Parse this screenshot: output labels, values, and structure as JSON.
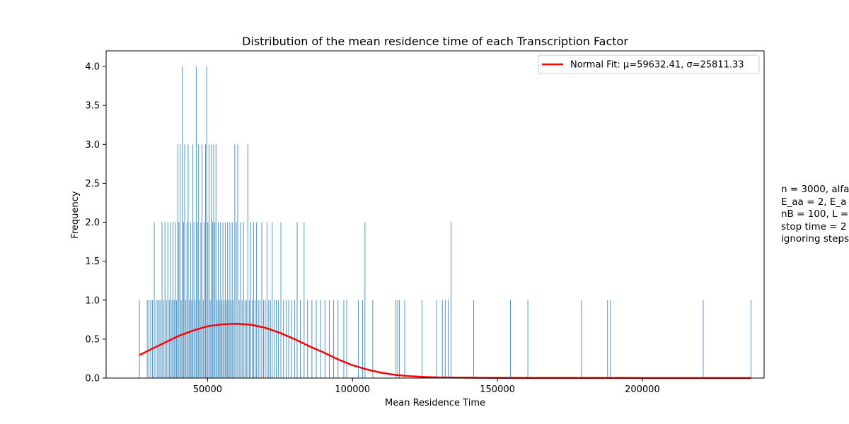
{
  "chart_data": {
    "type": "bar",
    "title": "Distribution of the mean residence time of each Transcription Factor",
    "xlabel": "Mean Residence Time",
    "ylabel": "Frequency",
    "xlim": [
      15000,
      242000
    ],
    "ylim": [
      0,
      4.2
    ],
    "x_ticks": [
      50000,
      100000,
      150000,
      200000
    ],
    "y_ticks": [
      0.0,
      0.5,
      1.0,
      1.5,
      2.0,
      2.5,
      3.0,
      3.5,
      4.0
    ],
    "grid": false,
    "legend_position": "top-right",
    "bar_color": "#1f77b4",
    "fit_color": "#ff0000",
    "series": [
      {
        "name": "",
        "type": "histogram",
        "bin_width": 240,
        "bars": [
          {
            "x": 26500,
            "y": 1
          },
          {
            "x": 29200,
            "y": 1
          },
          {
            "x": 29800,
            "y": 1
          },
          {
            "x": 30400,
            "y": 1
          },
          {
            "x": 31000,
            "y": 1
          },
          {
            "x": 31600,
            "y": 2
          },
          {
            "x": 32200,
            "y": 1
          },
          {
            "x": 32800,
            "y": 1
          },
          {
            "x": 33300,
            "y": 1
          },
          {
            "x": 33800,
            "y": 1
          },
          {
            "x": 34300,
            "y": 2
          },
          {
            "x": 34800,
            "y": 1
          },
          {
            "x": 35300,
            "y": 2
          },
          {
            "x": 35800,
            "y": 1
          },
          {
            "x": 36300,
            "y": 2
          },
          {
            "x": 36800,
            "y": 1
          },
          {
            "x": 37200,
            "y": 2
          },
          {
            "x": 37700,
            "y": 1
          },
          {
            "x": 38100,
            "y": 2
          },
          {
            "x": 38500,
            "y": 1
          },
          {
            "x": 38900,
            "y": 2
          },
          {
            "x": 39300,
            "y": 1
          },
          {
            "x": 39700,
            "y": 3
          },
          {
            "x": 40100,
            "y": 2
          },
          {
            "x": 40500,
            "y": 3
          },
          {
            "x": 40900,
            "y": 1
          },
          {
            "x": 41300,
            "y": 4
          },
          {
            "x": 41700,
            "y": 2
          },
          {
            "x": 42100,
            "y": 3
          },
          {
            "x": 42500,
            "y": 1
          },
          {
            "x": 42900,
            "y": 2
          },
          {
            "x": 43300,
            "y": 3
          },
          {
            "x": 43700,
            "y": 1
          },
          {
            "x": 44100,
            "y": 2
          },
          {
            "x": 44500,
            "y": 1
          },
          {
            "x": 44900,
            "y": 3
          },
          {
            "x": 45300,
            "y": 2
          },
          {
            "x": 45700,
            "y": 1
          },
          {
            "x": 46100,
            "y": 4
          },
          {
            "x": 46500,
            "y": 2
          },
          {
            "x": 46900,
            "y": 3
          },
          {
            "x": 47300,
            "y": 1
          },
          {
            "x": 47700,
            "y": 2
          },
          {
            "x": 48100,
            "y": 3
          },
          {
            "x": 48500,
            "y": 1
          },
          {
            "x": 48900,
            "y": 2
          },
          {
            "x": 49300,
            "y": 3
          },
          {
            "x": 49700,
            "y": 4
          },
          {
            "x": 50100,
            "y": 2
          },
          {
            "x": 50500,
            "y": 3
          },
          {
            "x": 50900,
            "y": 1
          },
          {
            "x": 51300,
            "y": 3
          },
          {
            "x": 51700,
            "y": 2
          },
          {
            "x": 52100,
            "y": 3
          },
          {
            "x": 52500,
            "y": 2
          },
          {
            "x": 52900,
            "y": 3
          },
          {
            "x": 53300,
            "y": 1
          },
          {
            "x": 53700,
            "y": 2
          },
          {
            "x": 54100,
            "y": 1
          },
          {
            "x": 54500,
            "y": 2
          },
          {
            "x": 54900,
            "y": 1
          },
          {
            "x": 55300,
            "y": 2
          },
          {
            "x": 55700,
            "y": 1
          },
          {
            "x": 56100,
            "y": 2
          },
          {
            "x": 56500,
            "y": 1
          },
          {
            "x": 56900,
            "y": 2
          },
          {
            "x": 57300,
            "y": 1
          },
          {
            "x": 57700,
            "y": 2
          },
          {
            "x": 58100,
            "y": 1
          },
          {
            "x": 58500,
            "y": 2
          },
          {
            "x": 58900,
            "y": 1
          },
          {
            "x": 59400,
            "y": 3
          },
          {
            "x": 59900,
            "y": 2
          },
          {
            "x": 60400,
            "y": 3
          },
          {
            "x": 60900,
            "y": 1
          },
          {
            "x": 61400,
            "y": 2
          },
          {
            "x": 61900,
            "y": 1
          },
          {
            "x": 62400,
            "y": 2
          },
          {
            "x": 62900,
            "y": 1
          },
          {
            "x": 63400,
            "y": 1
          },
          {
            "x": 63900,
            "y": 3
          },
          {
            "x": 64400,
            "y": 1
          },
          {
            "x": 64900,
            "y": 2
          },
          {
            "x": 65400,
            "y": 1
          },
          {
            "x": 65900,
            "y": 2
          },
          {
            "x": 66400,
            "y": 1
          },
          {
            "x": 66900,
            "y": 2
          },
          {
            "x": 67500,
            "y": 1
          },
          {
            "x": 68100,
            "y": 1
          },
          {
            "x": 68700,
            "y": 2
          },
          {
            "x": 69300,
            "y": 1
          },
          {
            "x": 69900,
            "y": 1
          },
          {
            "x": 70500,
            "y": 2
          },
          {
            "x": 71100,
            "y": 1
          },
          {
            "x": 71700,
            "y": 1
          },
          {
            "x": 72300,
            "y": 2
          },
          {
            "x": 73000,
            "y": 1
          },
          {
            "x": 73700,
            "y": 1
          },
          {
            "x": 74400,
            "y": 1
          },
          {
            "x": 75300,
            "y": 2
          },
          {
            "x": 76200,
            "y": 1
          },
          {
            "x": 77100,
            "y": 1
          },
          {
            "x": 78000,
            "y": 1
          },
          {
            "x": 79000,
            "y": 1
          },
          {
            "x": 80000,
            "y": 1
          },
          {
            "x": 80900,
            "y": 2
          },
          {
            "x": 82000,
            "y": 1
          },
          {
            "x": 83300,
            "y": 2
          },
          {
            "x": 84500,
            "y": 1
          },
          {
            "x": 86000,
            "y": 1
          },
          {
            "x": 87500,
            "y": 1
          },
          {
            "x": 89000,
            "y": 1
          },
          {
            "x": 90500,
            "y": 1
          },
          {
            "x": 92000,
            "y": 1
          },
          {
            "x": 93500,
            "y": 1
          },
          {
            "x": 95000,
            "y": 1
          },
          {
            "x": 97000,
            "y": 1
          },
          {
            "x": 98000,
            "y": 1
          },
          {
            "x": 102000,
            "y": 1
          },
          {
            "x": 103500,
            "y": 1
          },
          {
            "x": 104300,
            "y": 2
          },
          {
            "x": 107000,
            "y": 1
          },
          {
            "x": 115000,
            "y": 1
          },
          {
            "x": 115600,
            "y": 1
          },
          {
            "x": 116200,
            "y": 1
          },
          {
            "x": 118000,
            "y": 1
          },
          {
            "x": 124000,
            "y": 1
          },
          {
            "x": 129000,
            "y": 1
          },
          {
            "x": 131000,
            "y": 1
          },
          {
            "x": 132000,
            "y": 1
          },
          {
            "x": 133000,
            "y": 1
          },
          {
            "x": 134000,
            "y": 2
          },
          {
            "x": 141800,
            "y": 1
          },
          {
            "x": 154500,
            "y": 1
          },
          {
            "x": 160500,
            "y": 1
          },
          {
            "x": 179000,
            "y": 1
          },
          {
            "x": 188000,
            "y": 1
          },
          {
            "x": 189000,
            "y": 1
          },
          {
            "x": 221000,
            "y": 1
          },
          {
            "x": 237500,
            "y": 1
          }
        ]
      },
      {
        "name": "Normal Fit: μ=59632.41, σ=25811.33",
        "type": "line",
        "x": [
          26500,
          30000,
          35000,
          40000,
          45000,
          50000,
          55000,
          59632,
          65000,
          70000,
          75000,
          80000,
          85000,
          90000,
          95000,
          100000,
          105000,
          110000,
          115000,
          120000,
          125000,
          130000,
          140000,
          150000,
          170000,
          200000,
          237500
        ],
        "y": [
          0.295,
          0.36,
          0.45,
          0.54,
          0.61,
          0.665,
          0.69,
          0.697,
          0.685,
          0.645,
          0.58,
          0.5,
          0.41,
          0.33,
          0.24,
          0.165,
          0.11,
          0.068,
          0.04,
          0.024,
          0.014,
          0.008,
          0.004,
          0.002,
          0.001,
          0.0005,
          0.0002
        ]
      }
    ]
  },
  "side_note": {
    "lines": [
      "n = 3000, alfa",
      "E_aa = 2, E_a",
      "nB = 100, L =",
      "stop time = 2",
      "ignoring steps"
    ]
  }
}
